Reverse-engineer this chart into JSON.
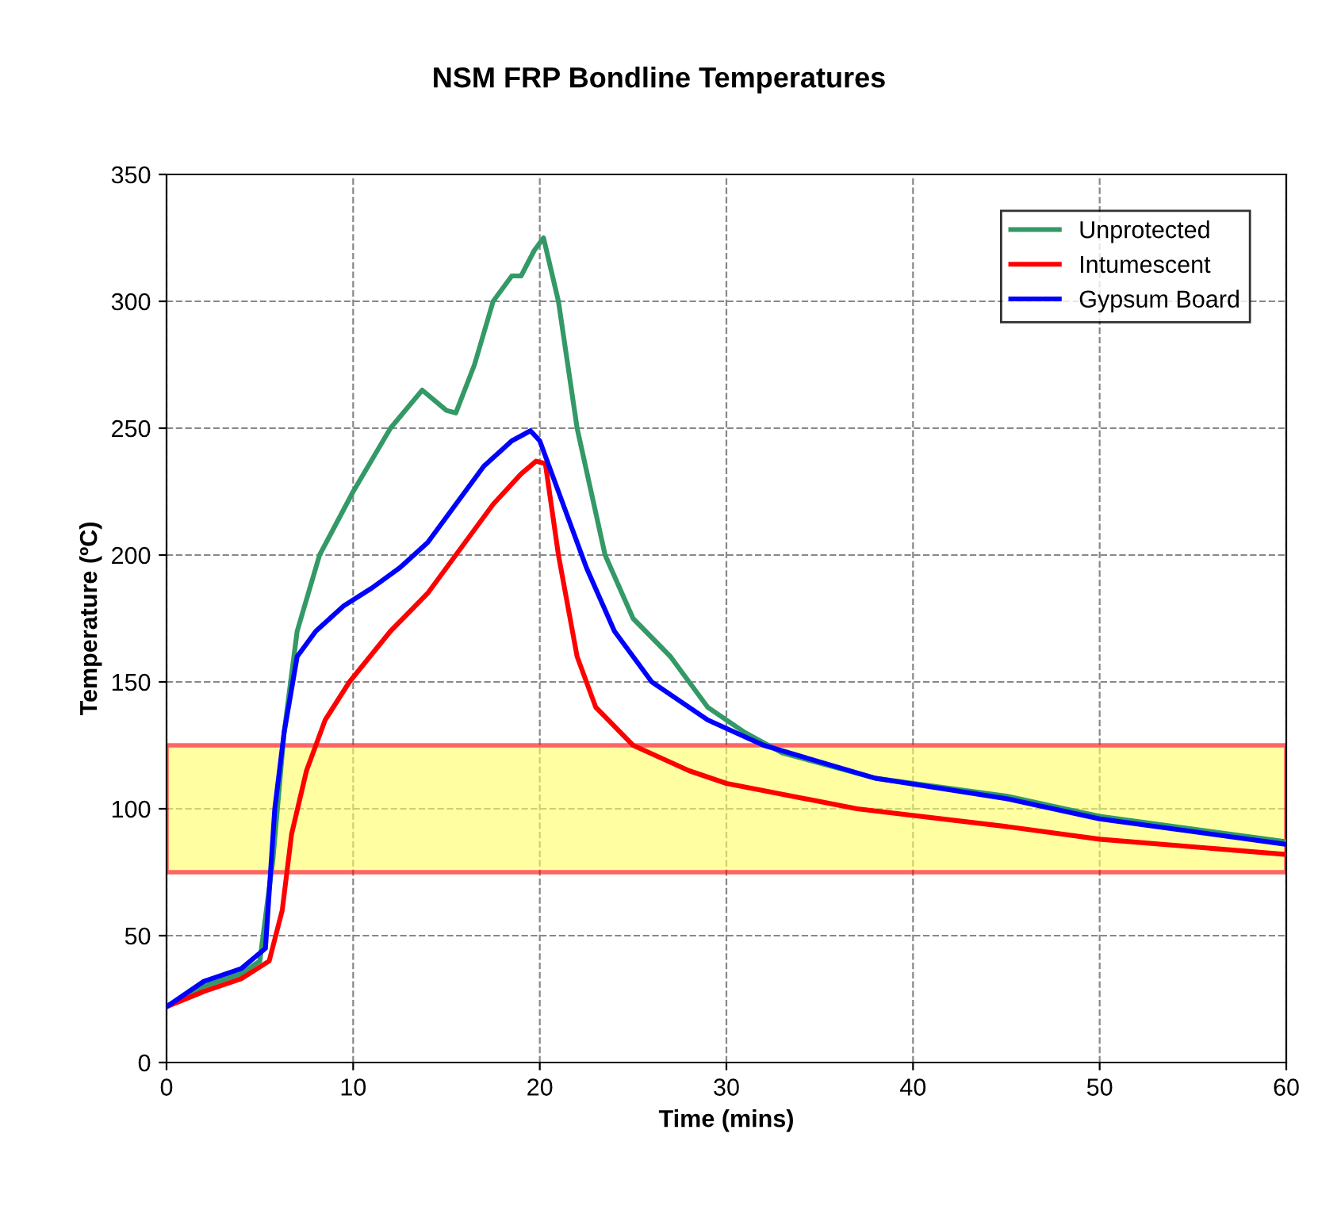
{
  "chart_data": {
    "type": "line",
    "title": "NSM FRP Bondline Temperatures",
    "xlabel": "Time (mins)",
    "ylabel": "Temperature (ºC)",
    "xlim": [
      0,
      60
    ],
    "xticks": [
      0,
      10,
      20,
      30,
      40,
      50,
      60
    ],
    "ylim": [
      0,
      350
    ],
    "yticks": [
      0,
      50,
      100,
      150,
      200,
      250,
      300,
      350
    ],
    "grid": true,
    "legend": "top right",
    "line_style": "solid",
    "marker": "none",
    "bands": [
      {
        "axis": "y",
        "from": 75,
        "to": 125,
        "color": "#ffff66"
      }
    ],
    "series": [
      {
        "name": "Unprotected",
        "color": "#339966",
        "x": [
          0,
          2,
          4,
          5,
          5.7,
          6.3,
          7,
          8.2,
          10,
          12,
          13.7,
          15,
          15.5,
          16.5,
          17.5,
          18.5,
          19,
          19.7,
          20.2,
          21,
          22,
          23.5,
          25,
          27,
          29,
          31,
          33,
          38,
          45,
          50,
          60
        ],
        "values": [
          22,
          30,
          35,
          40,
          80,
          130,
          170,
          200,
          225,
          250,
          265,
          257,
          256,
          275,
          300,
          310,
          310,
          320,
          325,
          300,
          250,
          200,
          175,
          160,
          140,
          130,
          122,
          112,
          105,
          97,
          87
        ]
      },
      {
        "name": "Intumescent",
        "color": "#ff0000",
        "x": [
          0,
          2,
          4,
          5.5,
          6.2,
          6.7,
          7.5,
          8.5,
          9.8,
          12,
          14,
          16,
          17.5,
          19,
          19.8,
          20.3,
          21,
          22,
          23,
          25,
          28,
          30,
          37,
          45,
          50,
          60
        ],
        "values": [
          22,
          28,
          33,
          40,
          60,
          90,
          115,
          135,
          150,
          170,
          185,
          205,
          220,
          232,
          237,
          236,
          200,
          160,
          140,
          125,
          115,
          110,
          100,
          93,
          88,
          82
        ]
      },
      {
        "name": "Gypsum Board",
        "color": "#0000ff",
        "x": [
          0,
          2,
          4,
          5.3,
          5.8,
          6.3,
          7,
          8,
          9.5,
          11,
          12.5,
          14,
          15.5,
          17,
          18.5,
          19.5,
          20,
          21,
          22.5,
          24,
          26,
          29,
          32,
          38,
          45,
          50,
          60
        ],
        "values": [
          22,
          32,
          37,
          45,
          100,
          130,
          160,
          170,
          180,
          187,
          195,
          205,
          220,
          235,
          245,
          249,
          245,
          225,
          195,
          170,
          150,
          135,
          125,
          112,
          104,
          96,
          86
        ]
      }
    ]
  }
}
